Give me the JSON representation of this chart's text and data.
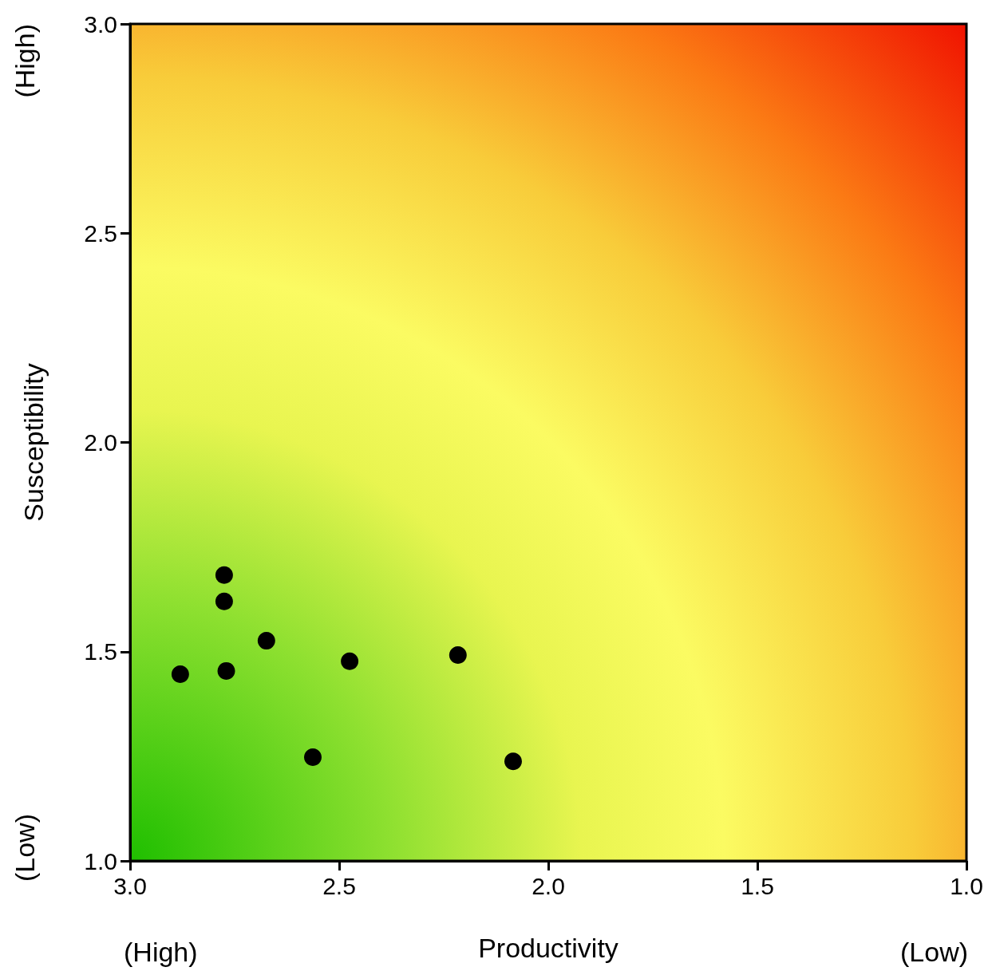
{
  "chart_data": {
    "type": "scatter",
    "xlabel": "Productivity",
    "ylabel": "Susceptibility",
    "annotations": [
      "(High)",
      "(Low)",
      "(Low)",
      "(High)"
    ],
    "x": [
      2.88,
      2.775,
      2.775,
      2.77,
      2.674,
      2.475,
      2.563,
      2.216,
      2.084
    ],
    "series": [
      {
        "color": "#000000",
        "values": [
          1.446,
          1.683,
          1.62,
          1.454,
          1.526,
          1.477,
          1.248,
          1.492,
          1.238
        ]
      }
    ],
    "xlim": [
      3.0,
      1.0
    ],
    "xticks": [
      {
        "value": 3,
        "label": "3.0"
      },
      2.5,
      {
        "value": 2,
        "label": "2.0"
      },
      1.5,
      {
        "value": 1,
        "label": "1.0"
      }
    ],
    "ylim": [
      1.0,
      3.0
    ],
    "yticks": [
      {
        "value": 1,
        "label": "1.0"
      },
      1.5,
      {
        "value": 2,
        "label": "2.0"
      },
      2.5,
      {
        "value": 3,
        "label": "3.0"
      }
    ],
    "marker": "circle",
    "grid": false
  }
}
